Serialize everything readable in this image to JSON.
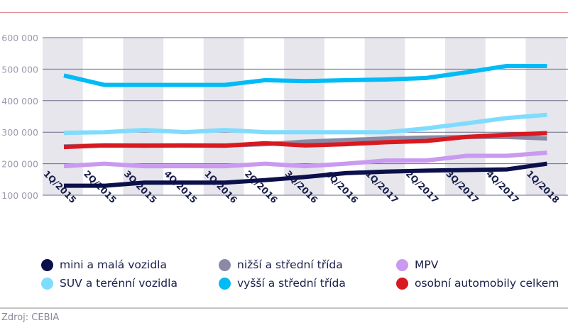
{
  "source": "Zdroj: CEBIA",
  "chart_data": {
    "type": "line",
    "categories": [
      "1Q/2015",
      "2Q/2015",
      "3Q/2015",
      "4Q/2015",
      "1Q/2016",
      "2Q/2016",
      "3Q/2016",
      "4Q/2016",
      "1Q/2017",
      "2Q/2017",
      "3Q/2017",
      "4Q/2017",
      "1Q/2018"
    ],
    "ylim": [
      100000,
      600000
    ],
    "yticks": [
      100000,
      200000,
      300000,
      400000,
      500000,
      600000
    ],
    "ytick_labels": [
      "100 000",
      "200 000",
      "300 000",
      "400 000",
      "500 000",
      "600 000"
    ],
    "grid": true,
    "legend_position": "bottom",
    "series": [
      {
        "name": "mini a malá vozidla",
        "color": "#0b0f4a",
        "values": [
          130000,
          130000,
          140000,
          140000,
          140000,
          148000,
          158000,
          170000,
          175000,
          178000,
          180000,
          182000,
          200000
        ]
      },
      {
        "name": "nižší a střední třída",
        "color": "#8a8aa6",
        "values": [
          255000,
          258000,
          258000,
          258000,
          258000,
          262000,
          270000,
          275000,
          280000,
          283000,
          285000,
          285000,
          280000
        ]
      },
      {
        "name": "MPV",
        "color": "#c99af0",
        "values": [
          192000,
          200000,
          192000,
          192000,
          192000,
          200000,
          192000,
          200000,
          210000,
          210000,
          225000,
          225000,
          235000
        ]
      },
      {
        "name": "SUV a terénní vozidla",
        "color": "#80dcff",
        "values": [
          298000,
          300000,
          307000,
          300000,
          307000,
          300000,
          300000,
          300000,
          300000,
          312000,
          328000,
          345000,
          355000
        ]
      },
      {
        "name": "vyšší a střední třída",
        "color": "#00bbf5",
        "values": [
          480000,
          450000,
          450000,
          450000,
          450000,
          465000,
          462000,
          465000,
          467000,
          472000,
          490000,
          510000,
          510000
        ]
      },
      {
        "name": "osobní automobily celkem",
        "color": "#d9191f",
        "values": [
          253000,
          258000,
          257000,
          258000,
          257000,
          265000,
          258000,
          262000,
          268000,
          272000,
          285000,
          292000,
          297000
        ]
      }
    ]
  }
}
